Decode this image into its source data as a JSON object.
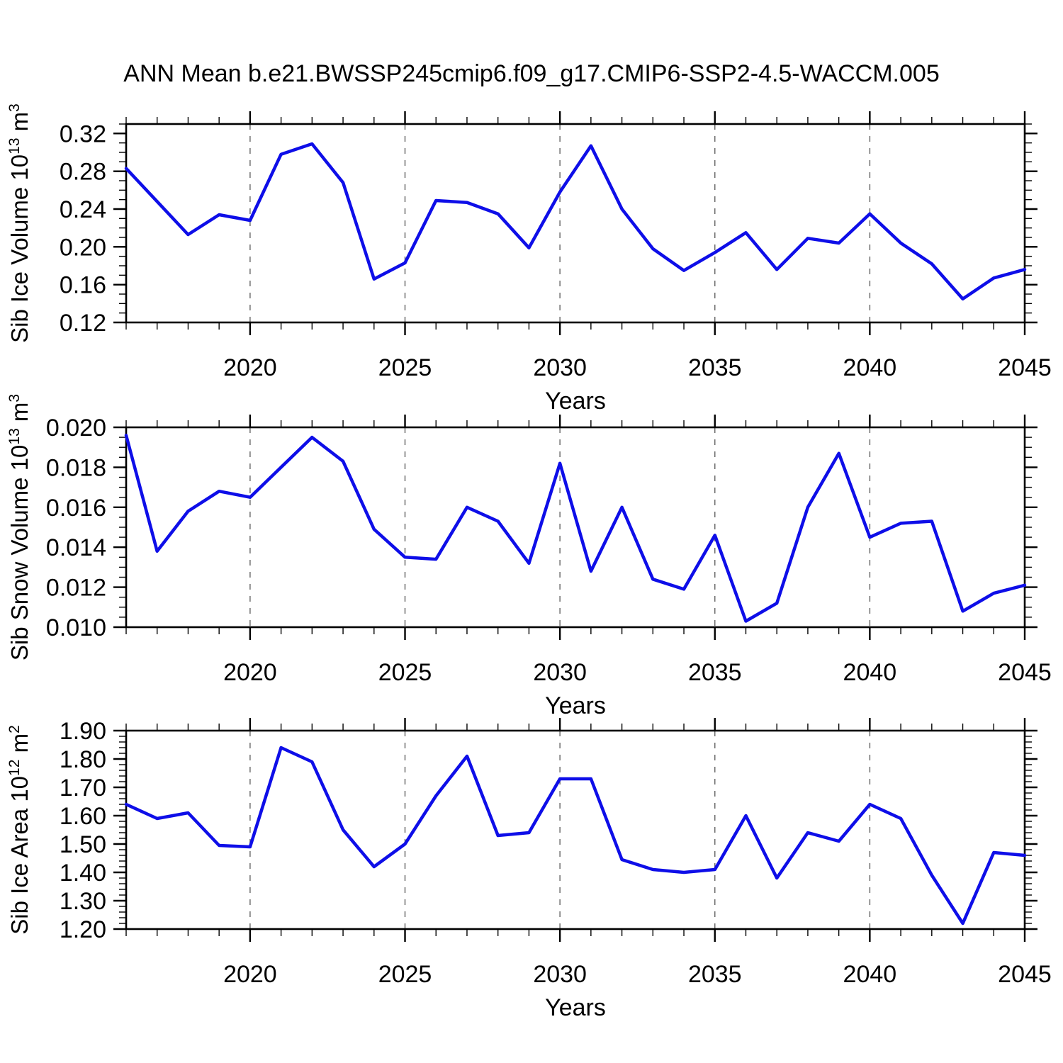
{
  "title": "ANN Mean b.e21.BWSSP245cmip6.f09_g17.CMIP6-SSP2-4.5-WACCM.005",
  "styles": {
    "line_color": "#0E0EE8",
    "grid_color": "#6E6E6E",
    "axis_color": "#000000",
    "text_color": "#000000"
  },
  "chart_data": [
    {
      "type": "line",
      "name": "sib-ice-volume",
      "xlabel": "Years",
      "ylabel": "Sib Ice Volume 10^13^ m^3^",
      "xlim": [
        2016,
        2045
      ],
      "ylim": [
        0.12,
        0.33
      ],
      "x_minor_step": 1,
      "ytick_minor_step": 0.01,
      "xtick_values": [
        2020,
        2025,
        2030,
        2035,
        2040,
        2045
      ],
      "xtick_labels": [
        "2020",
        "2025",
        "2030",
        "2035",
        "2040",
        "2045"
      ],
      "grid_x": [
        2020,
        2025,
        2030,
        2035,
        2040
      ],
      "ytick_values": [
        0.12,
        0.16,
        0.2,
        0.24,
        0.28,
        0.32
      ],
      "ytick_labels": [
        "0.12",
        "0.16",
        "0.20",
        "0.24",
        "0.28",
        "0.32"
      ],
      "x": [
        2016,
        2017,
        2018,
        2019,
        2020,
        2021,
        2022,
        2023,
        2024,
        2025,
        2026,
        2027,
        2028,
        2029,
        2030,
        2031,
        2032,
        2033,
        2034,
        2035,
        2036,
        2037,
        2038,
        2039,
        2040,
        2041,
        2042,
        2043,
        2044,
        2045
      ],
      "values": [
        0.283,
        0.248,
        0.213,
        0.234,
        0.228,
        0.298,
        0.309,
        0.268,
        0.166,
        0.183,
        0.249,
        0.247,
        0.235,
        0.199,
        0.258,
        0.307,
        0.24,
        0.198,
        0.175,
        0.194,
        0.215,
        0.176,
        0.209,
        0.204,
        0.235,
        0.204,
        0.182,
        0.145,
        0.167,
        0.176
      ]
    },
    {
      "type": "line",
      "name": "sib-snow-volume",
      "xlabel": "Years",
      "ylabel": "Sib Snow Volume 10^13^ m^3^",
      "xlim": [
        2016,
        2045
      ],
      "ylim": [
        0.01,
        0.02
      ],
      "x_minor_step": 1,
      "ytick_minor_step": 0.0005,
      "xtick_values": [
        2020,
        2025,
        2030,
        2035,
        2040,
        2045
      ],
      "xtick_labels": [
        "2020",
        "2025",
        "2030",
        "2035",
        "2040",
        "2045"
      ],
      "grid_x": [
        2020,
        2025,
        2030,
        2035,
        2040
      ],
      "ytick_values": [
        0.01,
        0.012,
        0.014,
        0.016,
        0.018,
        0.02
      ],
      "ytick_labels": [
        "0.010",
        "0.012",
        "0.014",
        "0.016",
        "0.018",
        "0.020"
      ],
      "x": [
        2016,
        2017,
        2018,
        2019,
        2020,
        2021,
        2022,
        2023,
        2024,
        2025,
        2026,
        2027,
        2028,
        2029,
        2030,
        2031,
        2032,
        2033,
        2034,
        2035,
        2036,
        2037,
        2038,
        2039,
        2040,
        2041,
        2042,
        2043,
        2044,
        2045
      ],
      "values": [
        0.0196,
        0.0138,
        0.0158,
        0.0168,
        0.0165,
        0.018,
        0.0195,
        0.0183,
        0.0149,
        0.0135,
        0.0134,
        0.016,
        0.0153,
        0.0132,
        0.0182,
        0.0128,
        0.016,
        0.0124,
        0.0119,
        0.0146,
        0.0103,
        0.0112,
        0.016,
        0.0187,
        0.0145,
        0.0152,
        0.0153,
        0.0108,
        0.0117,
        0.0121
      ]
    },
    {
      "type": "line",
      "name": "sib-ice-area",
      "xlabel": "Years",
      "ylabel": "Sib Ice Area 10^12^ m^2^",
      "xlim": [
        2016,
        2045
      ],
      "ylim": [
        1.2,
        1.9
      ],
      "x_minor_step": 1,
      "ytick_minor_step": 0.02,
      "xtick_values": [
        2020,
        2025,
        2030,
        2035,
        2040,
        2045
      ],
      "xtick_labels": [
        "2020",
        "2025",
        "2030",
        "2035",
        "2040",
        "2045"
      ],
      "grid_x": [
        2020,
        2025,
        2030,
        2035,
        2040
      ],
      "ytick_values": [
        1.2,
        1.3,
        1.4,
        1.5,
        1.6,
        1.7,
        1.8,
        1.9
      ],
      "ytick_labels": [
        "1.20",
        "1.30",
        "1.40",
        "1.50",
        "1.60",
        "1.70",
        "1.80",
        "1.90"
      ],
      "x": [
        2016,
        2017,
        2018,
        2019,
        2020,
        2021,
        2022,
        2023,
        2024,
        2025,
        2026,
        2027,
        2028,
        2029,
        2030,
        2031,
        2032,
        2033,
        2034,
        2035,
        2036,
        2037,
        2038,
        2039,
        2040,
        2041,
        2042,
        2043,
        2044,
        2045
      ],
      "values": [
        1.64,
        1.59,
        1.61,
        1.495,
        1.49,
        1.84,
        1.79,
        1.55,
        1.42,
        1.5,
        1.67,
        1.81,
        1.53,
        1.54,
        1.73,
        1.73,
        1.445,
        1.41,
        1.4,
        1.41,
        1.6,
        1.38,
        1.54,
        1.51,
        1.64,
        1.59,
        1.39,
        1.22,
        1.47,
        1.46
      ]
    }
  ]
}
